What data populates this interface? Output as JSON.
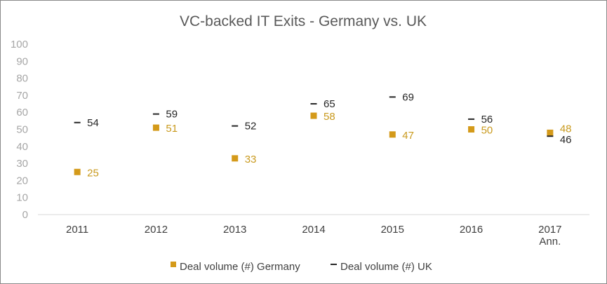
{
  "chart_data": {
    "type": "scatter",
    "title": "VC-backed IT Exits - Germany vs. UK",
    "categories": [
      [
        "2011"
      ],
      [
        "2012"
      ],
      [
        "2013"
      ],
      [
        "2014"
      ],
      [
        "2015"
      ],
      [
        "2016"
      ],
      [
        "2017",
        "Ann."
      ]
    ],
    "ylim": [
      0,
      100
    ],
    "yticks": [
      0,
      10,
      20,
      30,
      40,
      50,
      60,
      70,
      80,
      90,
      100
    ],
    "series": [
      {
        "name": "Deal volume (#) Germany",
        "marker": "square",
        "color": "#d49a1a",
        "label_color": "#c99a1e",
        "values": [
          25,
          51,
          33,
          58,
          47,
          50,
          48
        ]
      },
      {
        "name": "Deal volume (#) UK",
        "marker": "dash",
        "color": "#262626",
        "label_color": "#262626",
        "values": [
          54,
          59,
          52,
          65,
          69,
          56,
          46
        ]
      }
    ],
    "legend": "bottom",
    "grid": false
  }
}
